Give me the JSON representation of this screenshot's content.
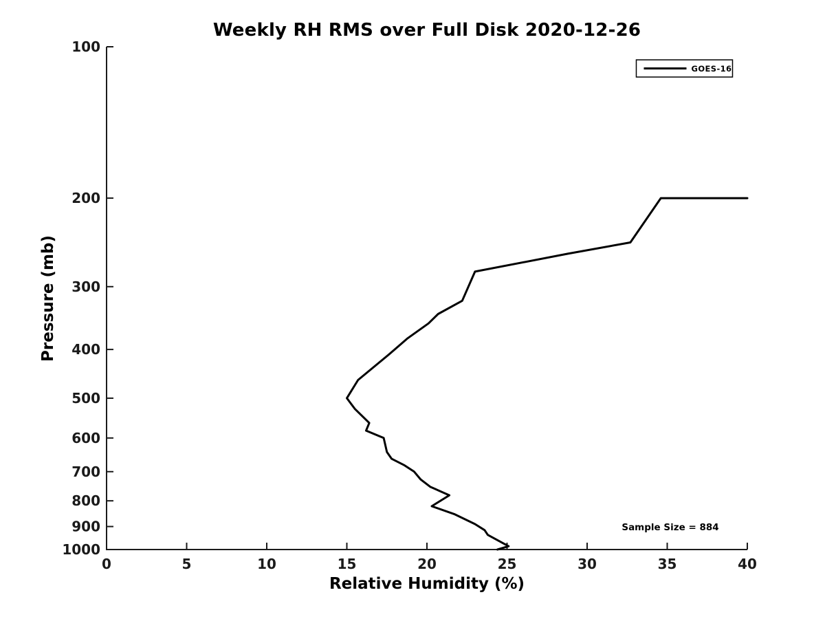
{
  "chart_data": {
    "type": "line",
    "title": "Weekly RH RMS over Full Disk 2020-12-26",
    "xlabel": "Relative Humidity (%)",
    "ylabel": "Pressure (mb)",
    "x_ticks": [
      0,
      5,
      10,
      15,
      20,
      25,
      30,
      35,
      40
    ],
    "y_ticks": [
      100,
      200,
      300,
      400,
      500,
      600,
      700,
      800,
      900,
      1000
    ],
    "xlim": [
      0,
      40
    ],
    "ylim": [
      100,
      1000
    ],
    "y_scale": "log",
    "y_inverted": true,
    "grid": false,
    "legend_position": "upper right",
    "annotation": "Sample Size = 884",
    "line_color": "#000000",
    "series": [
      {
        "name": "GOES-16",
        "color": "#000000",
        "points": [
          {
            "rh": 40.0,
            "p": 200
          },
          {
            "rh": 34.6,
            "p": 200
          },
          {
            "rh": 32.7,
            "p": 245
          },
          {
            "rh": 28.8,
            "p": 258
          },
          {
            "rh": 23.0,
            "p": 280
          },
          {
            "rh": 22.2,
            "p": 320
          },
          {
            "rh": 20.7,
            "p": 340
          },
          {
            "rh": 20.1,
            "p": 355
          },
          {
            "rh": 18.8,
            "p": 380
          },
          {
            "rh": 17.6,
            "p": 410
          },
          {
            "rh": 15.7,
            "p": 460
          },
          {
            "rh": 15.0,
            "p": 500
          },
          {
            "rh": 15.5,
            "p": 525
          },
          {
            "rh": 16.4,
            "p": 560
          },
          {
            "rh": 16.2,
            "p": 580
          },
          {
            "rh": 17.3,
            "p": 600
          },
          {
            "rh": 17.5,
            "p": 640
          },
          {
            "rh": 17.8,
            "p": 660
          },
          {
            "rh": 18.6,
            "p": 680
          },
          {
            "rh": 19.2,
            "p": 700
          },
          {
            "rh": 19.6,
            "p": 725
          },
          {
            "rh": 20.2,
            "p": 750
          },
          {
            "rh": 21.4,
            "p": 780
          },
          {
            "rh": 20.3,
            "p": 820
          },
          {
            "rh": 21.7,
            "p": 850
          },
          {
            "rh": 23.0,
            "p": 890
          },
          {
            "rh": 23.6,
            "p": 915
          },
          {
            "rh": 23.8,
            "p": 935
          },
          {
            "rh": 25.1,
            "p": 985
          },
          {
            "rh": 24.4,
            "p": 1000
          }
        ]
      }
    ]
  }
}
